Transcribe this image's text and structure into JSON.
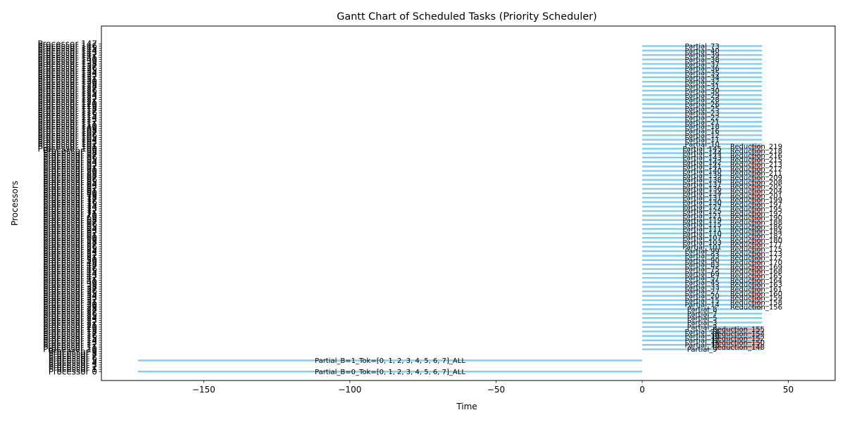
{
  "chart_data": {
    "type": "gantt",
    "title": "Gantt Chart of Scheduled Tasks (Priority Scheduler)",
    "xlabel": "Time",
    "ylabel": "Processors",
    "xlim": [
      -185,
      66
    ],
    "ylim": [
      -4,
      155
    ],
    "xticks": [
      -150,
      -100,
      -50,
      0,
      50
    ],
    "tick_labels": [
      "−150",
      "−100",
      "−50",
      "0",
      "50"
    ],
    "processor_count": 148,
    "processor_label_prefix": "Processor ",
    "grid": false,
    "colors": {
      "partial": "#87ceeb",
      "reduction": "#fa8072"
    },
    "tasks": [
      {
        "processor": 0,
        "start": -172.5,
        "end": 0,
        "label": "Partial_B=0_Tok=[0, 1, 2, 3, 4, 5, 6, 7]_ALL",
        "kind": "partial"
      },
      {
        "processor": 5,
        "start": -172.5,
        "end": 0,
        "label": "Partial_B=1_Tok=[0, 1, 2, 3, 4, 5, 6, 7]_ALL",
        "kind": "partial"
      },
      {
        "processor": 10,
        "start": 0,
        "end": 41,
        "label": "Partial_9",
        "kind": "partial"
      },
      {
        "processor": 11,
        "start": 25,
        "end": 41,
        "label": "Reduction_148",
        "kind": "reduction"
      },
      {
        "processor": 12,
        "start": 0,
        "end": 41,
        "label": "Partial_13",
        "kind": "partial"
      },
      {
        "processor": 13,
        "start": 25,
        "end": 41,
        "label": "Reduction_150",
        "kind": "reduction"
      },
      {
        "processor": 14,
        "start": 0,
        "end": 41,
        "label": "Partial_17",
        "kind": "partial"
      },
      {
        "processor": 15,
        "start": 25,
        "end": 41,
        "label": "Reduction_152",
        "kind": "reduction"
      },
      {
        "processor": 16,
        "start": 0,
        "end": 41,
        "label": "Partial_19",
        "kind": "partial"
      },
      {
        "processor": 17,
        "start": 25,
        "end": 41,
        "label": "Reduction_154",
        "kind": "reduction"
      },
      {
        "processor": 18,
        "start": 0,
        "end": 41,
        "label": "Partial_24",
        "kind": "partial"
      },
      {
        "processor": 19,
        "start": 25,
        "end": 41,
        "label": "Reduction_155",
        "kind": "reduction"
      },
      {
        "processor": 20,
        "start": 0,
        "end": 41,
        "label": "Partial_2",
        "kind": "partial"
      },
      {
        "processor": 22,
        "start": 0,
        "end": 41,
        "label": "Partial_3",
        "kind": "partial"
      },
      {
        "processor": 24,
        "start": 0,
        "end": 41,
        "label": "Partial_5",
        "kind": "partial"
      },
      {
        "processor": 26,
        "start": 0,
        "end": 41,
        "label": "Partial_7",
        "kind": "partial"
      },
      {
        "processor": 28,
        "start": 0,
        "end": 41,
        "label": "Partial_8",
        "kind": "partial"
      },
      {
        "processor": 29,
        "start": 37,
        "end": 41,
        "label": "Reduction_156",
        "kind": "reduction"
      },
      {
        "processor": 30,
        "start": 0,
        "end": 41,
        "label": "Partial_14",
        "kind": "partial"
      },
      {
        "processor": 31,
        "start": 37,
        "end": 41,
        "label": "Reduction_158",
        "kind": "reduction"
      },
      {
        "processor": 32,
        "start": 0,
        "end": 41,
        "label": "Partial_15",
        "kind": "partial"
      },
      {
        "processor": 33,
        "start": 37,
        "end": 41,
        "label": "Reduction_159",
        "kind": "reduction"
      },
      {
        "processor": 34,
        "start": 0,
        "end": 41,
        "label": "Partial_20",
        "kind": "partial"
      },
      {
        "processor": 35,
        "start": 37,
        "end": 41,
        "label": "Reduction_160",
        "kind": "reduction"
      },
      {
        "processor": 36,
        "start": 0,
        "end": 41,
        "label": "Partial_27",
        "kind": "partial"
      },
      {
        "processor": 37,
        "start": 37,
        "end": 41,
        "label": "Reduction_161",
        "kind": "reduction"
      },
      {
        "processor": 38,
        "start": 0,
        "end": 41,
        "label": "Partial_33",
        "kind": "partial"
      },
      {
        "processor": 39,
        "start": 37,
        "end": 41,
        "label": "Reduction_163",
        "kind": "reduction"
      },
      {
        "processor": 40,
        "start": 0,
        "end": 41,
        "label": "Partial_45",
        "kind": "partial"
      },
      {
        "processor": 41,
        "start": 37,
        "end": 41,
        "label": "Reduction_164",
        "kind": "reduction"
      },
      {
        "processor": 42,
        "start": 0,
        "end": 41,
        "label": "Partial_57",
        "kind": "partial"
      },
      {
        "processor": 43,
        "start": 37,
        "end": 41,
        "label": "Reduction_165",
        "kind": "reduction"
      },
      {
        "processor": 44,
        "start": 0,
        "end": 41,
        "label": "Partial_69",
        "kind": "partial"
      },
      {
        "processor": 45,
        "start": 37,
        "end": 41,
        "label": "Reduction_168",
        "kind": "reduction"
      },
      {
        "processor": 46,
        "start": 0,
        "end": 41,
        "label": "Partial_75",
        "kind": "partial"
      },
      {
        "processor": 47,
        "start": 37,
        "end": 41,
        "label": "Reduction_169",
        "kind": "reduction"
      },
      {
        "processor": 48,
        "start": 0,
        "end": 41,
        "label": "Partial_83",
        "kind": "partial"
      },
      {
        "processor": 49,
        "start": 37,
        "end": 41,
        "label": "Reduction_170",
        "kind": "reduction"
      },
      {
        "processor": 50,
        "start": 0,
        "end": 41,
        "label": "Partial_90",
        "kind": "partial"
      },
      {
        "processor": 51,
        "start": 37,
        "end": 41,
        "label": "Reduction_172",
        "kind": "reduction"
      },
      {
        "processor": 52,
        "start": 0,
        "end": 41,
        "label": "Partial_93",
        "kind": "partial"
      },
      {
        "processor": 53,
        "start": 37,
        "end": 41,
        "label": "Reduction_173",
        "kind": "reduction"
      },
      {
        "processor": 54,
        "start": 0,
        "end": 41,
        "label": "Partial_99",
        "kind": "partial"
      },
      {
        "processor": 55,
        "start": 37,
        "end": 41,
        "label": "Reduction_175",
        "kind": "reduction"
      },
      {
        "processor": 56,
        "start": 0,
        "end": 41,
        "label": "Partial_101",
        "kind": "partial"
      },
      {
        "processor": 57,
        "start": 37,
        "end": 41,
        "label": "Reduction_177",
        "kind": "reduction"
      },
      {
        "processor": 58,
        "start": 0,
        "end": 41,
        "label": "Partial_103",
        "kind": "partial"
      },
      {
        "processor": 59,
        "start": 37,
        "end": 41,
        "label": "Reduction_180",
        "kind": "reduction"
      },
      {
        "processor": 60,
        "start": 0,
        "end": 41,
        "label": "Partial_107",
        "kind": "partial"
      },
      {
        "processor": 61,
        "start": 37,
        "end": 41,
        "label": "Reduction_182",
        "kind": "reduction"
      },
      {
        "processor": 62,
        "start": 0,
        "end": 41,
        "label": "Partial_110",
        "kind": "partial"
      },
      {
        "processor": 63,
        "start": 37,
        "end": 41,
        "label": "Reduction_184",
        "kind": "reduction"
      },
      {
        "processor": 64,
        "start": 0,
        "end": 41,
        "label": "Partial_111",
        "kind": "partial"
      },
      {
        "processor": 65,
        "start": 37,
        "end": 41,
        "label": "Reduction_186",
        "kind": "reduction"
      },
      {
        "processor": 66,
        "start": 0,
        "end": 41,
        "label": "Partial_115",
        "kind": "partial"
      },
      {
        "processor": 67,
        "start": 37,
        "end": 41,
        "label": "Reduction_188",
        "kind": "reduction"
      },
      {
        "processor": 68,
        "start": 0,
        "end": 41,
        "label": "Partial_119",
        "kind": "partial"
      },
      {
        "processor": 69,
        "start": 37,
        "end": 41,
        "label": "Reduction_190",
        "kind": "reduction"
      },
      {
        "processor": 70,
        "start": 0,
        "end": 41,
        "label": "Partial_121",
        "kind": "partial"
      },
      {
        "processor": 71,
        "start": 37,
        "end": 41,
        "label": "Reduction_192",
        "kind": "reduction"
      },
      {
        "processor": 72,
        "start": 0,
        "end": 41,
        "label": "Partial_125",
        "kind": "partial"
      },
      {
        "processor": 73,
        "start": 37,
        "end": 41,
        "label": "Reduction_195",
        "kind": "reduction"
      },
      {
        "processor": 74,
        "start": 0,
        "end": 41,
        "label": "Partial_127",
        "kind": "partial"
      },
      {
        "processor": 75,
        "start": 37,
        "end": 41,
        "label": "Reduction_197",
        "kind": "reduction"
      },
      {
        "processor": 76,
        "start": 0,
        "end": 41,
        "label": "Partial_130",
        "kind": "partial"
      },
      {
        "processor": 77,
        "start": 37,
        "end": 41,
        "label": "Reduction_199",
        "kind": "reduction"
      },
      {
        "processor": 78,
        "start": 0,
        "end": 41,
        "label": "Partial_131",
        "kind": "partial"
      },
      {
        "processor": 79,
        "start": 37,
        "end": 41,
        "label": "Reduction_201",
        "kind": "reduction"
      },
      {
        "processor": 80,
        "start": 0,
        "end": 41,
        "label": "Partial_134",
        "kind": "partial"
      },
      {
        "processor": 81,
        "start": 37,
        "end": 41,
        "label": "Reduction_204",
        "kind": "reduction"
      },
      {
        "processor": 82,
        "start": 0,
        "end": 41,
        "label": "Partial_136",
        "kind": "partial"
      },
      {
        "processor": 83,
        "start": 37,
        "end": 41,
        "label": "Reduction_205",
        "kind": "reduction"
      },
      {
        "processor": 84,
        "start": 0,
        "end": 41,
        "label": "Partial_137",
        "kind": "partial"
      },
      {
        "processor": 85,
        "start": 37,
        "end": 41,
        "label": "Reduction_208",
        "kind": "reduction"
      },
      {
        "processor": 86,
        "start": 0,
        "end": 41,
        "label": "Partial_138",
        "kind": "partial"
      },
      {
        "processor": 87,
        "start": 37,
        "end": 41,
        "label": "Reduction_209",
        "kind": "reduction"
      },
      {
        "processor": 88,
        "start": 0,
        "end": 41,
        "label": "Partial_139",
        "kind": "partial"
      },
      {
        "processor": 89,
        "start": 37,
        "end": 41,
        "label": "Reduction_211",
        "kind": "reduction"
      },
      {
        "processor": 90,
        "start": 0,
        "end": 41,
        "label": "Partial_140",
        "kind": "partial"
      },
      {
        "processor": 91,
        "start": 37,
        "end": 41,
        "label": "Reduction_212",
        "kind": "reduction"
      },
      {
        "processor": 92,
        "start": 0,
        "end": 41,
        "label": "Partial_141",
        "kind": "partial"
      },
      {
        "processor": 93,
        "start": 37,
        "end": 41,
        "label": "Reduction_213",
        "kind": "reduction"
      },
      {
        "processor": 94,
        "start": 0,
        "end": 41,
        "label": "Partial_142",
        "kind": "partial"
      },
      {
        "processor": 95,
        "start": 37,
        "end": 41,
        "label": "Reduction_215",
        "kind": "reduction"
      },
      {
        "processor": 96,
        "start": 0,
        "end": 41,
        "label": "Partial_143",
        "kind": "partial"
      },
      {
        "processor": 97,
        "start": 37,
        "end": 41,
        "label": "Reduction_216",
        "kind": "reduction"
      },
      {
        "processor": 98,
        "start": 0,
        "end": 41,
        "label": "Partial_144",
        "kind": "partial"
      },
      {
        "processor": 99,
        "start": 37,
        "end": 41,
        "label": "Reduction_218",
        "kind": "reduction"
      },
      {
        "processor": 100,
        "start": 0,
        "end": 41,
        "label": "Partial_145",
        "kind": "partial"
      },
      {
        "processor": 101,
        "start": 37,
        "end": 41,
        "label": "Reduction_219",
        "kind": "reduction"
      },
      {
        "processor": 102,
        "start": 0,
        "end": 41,
        "label": "Partial_10",
        "kind": "partial"
      },
      {
        "processor": 104,
        "start": 0,
        "end": 41,
        "label": "Partial_11",
        "kind": "partial"
      },
      {
        "processor": 106,
        "start": 0,
        "end": 41,
        "label": "Partial_12",
        "kind": "partial"
      },
      {
        "processor": 108,
        "start": 0,
        "end": 41,
        "label": "Partial_16",
        "kind": "partial"
      },
      {
        "processor": 110,
        "start": 0,
        "end": 41,
        "label": "Partial_18",
        "kind": "partial"
      },
      {
        "processor": 112,
        "start": 0,
        "end": 41,
        "label": "Partial_21",
        "kind": "partial"
      },
      {
        "processor": 114,
        "start": 0,
        "end": 41,
        "label": "Partial_22",
        "kind": "partial"
      },
      {
        "processor": 116,
        "start": 0,
        "end": 41,
        "label": "Partial_23",
        "kind": "partial"
      },
      {
        "processor": 118,
        "start": 0,
        "end": 41,
        "label": "Partial_25",
        "kind": "partial"
      },
      {
        "processor": 120,
        "start": 0,
        "end": 41,
        "label": "Partial_26",
        "kind": "partial"
      },
      {
        "processor": 122,
        "start": 0,
        "end": 41,
        "label": "Partial_28",
        "kind": "partial"
      },
      {
        "processor": 124,
        "start": 0,
        "end": 41,
        "label": "Partial_29",
        "kind": "partial"
      },
      {
        "processor": 126,
        "start": 0,
        "end": 41,
        "label": "Partial_30",
        "kind": "partial"
      },
      {
        "processor": 128,
        "start": 0,
        "end": 41,
        "label": "Partial_31",
        "kind": "partial"
      },
      {
        "processor": 130,
        "start": 0,
        "end": 41,
        "label": "Partial_32",
        "kind": "partial"
      },
      {
        "processor": 132,
        "start": 0,
        "end": 41,
        "label": "Partial_34",
        "kind": "partial"
      },
      {
        "processor": 134,
        "start": 0,
        "end": 41,
        "label": "Partial_35",
        "kind": "partial"
      },
      {
        "processor": 136,
        "start": 0,
        "end": 41,
        "label": "Partial_36",
        "kind": "partial"
      },
      {
        "processor": 138,
        "start": 0,
        "end": 41,
        "label": "Partial_37",
        "kind": "partial"
      },
      {
        "processor": 140,
        "start": 0,
        "end": 41,
        "label": "Partial_38",
        "kind": "partial"
      },
      {
        "processor": 142,
        "start": 0,
        "end": 41,
        "label": "Partial_39",
        "kind": "partial"
      },
      {
        "processor": 144,
        "start": 0,
        "end": 41,
        "label": "Partial_40",
        "kind": "partial"
      },
      {
        "processor": 146,
        "start": 0,
        "end": 41,
        "label": "Partial_73",
        "kind": "partial"
      }
    ]
  }
}
